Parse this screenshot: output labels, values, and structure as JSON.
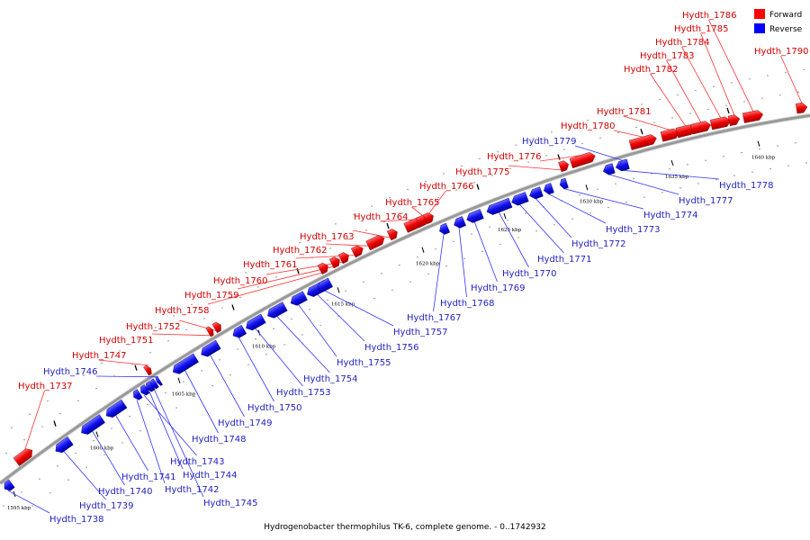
{
  "caption": "Hydrogenobacter thermophilus TK-6, complete genome. - 0..1742932",
  "legend": [
    {
      "label": "Forward",
      "color": "#ff0000"
    },
    {
      "label": "Reverse",
      "color": "#0000ff"
    }
  ],
  "colors": {
    "forward": "#ff0000",
    "reverse": "#0000ff",
    "forward_label": "#d40000",
    "reverse_label": "#1f1fbf",
    "backbone": "#999999"
  },
  "ticks": [
    "1595 kbp",
    "1600 kbp",
    "1605 kbp",
    "1610 kbp",
    "1615 kbp",
    "1620 kbp",
    "1625 kbp",
    "1630 kbp",
    "1635 kbp",
    "1640 kbp"
  ],
  "forward_genes": [
    "Hydth_1737",
    "Hydth_1747",
    "Hydth_1751",
    "Hydth_1752",
    "Hydth_1758",
    "Hydth_1759",
    "Hydth_1760",
    "Hydth_1761",
    "Hydth_1762",
    "Hydth_1763",
    "Hydth_1764",
    "Hydth_1765",
    "Hydth_1766",
    "Hydth_1775",
    "Hydth_1776",
    "Hydth_1780",
    "Hydth_1781",
    "Hydth_1782",
    "Hydth_1783",
    "Hydth_1784",
    "Hydth_1785",
    "Hydth_1786",
    "Hydth_1790"
  ],
  "reverse_genes": [
    "Hydth_1738",
    "Hydth_1739",
    "Hydth_1740",
    "Hydth_1741",
    "Hydth_1742",
    "Hydth_1743",
    "Hydth_1744",
    "Hydth_1745",
    "Hydth_1746",
    "Hydth_1748",
    "Hydth_1749",
    "Hydth_1750",
    "Hydth_1753",
    "Hydth_1754",
    "Hydth_1755",
    "Hydth_1756",
    "Hydth_1757",
    "Hydth_1767",
    "Hydth_1768",
    "Hydth_1769",
    "Hydth_1770",
    "Hydth_1771",
    "Hydth_1772",
    "Hydth_1773",
    "Hydth_1774",
    "Hydth_1777",
    "Hydth_1778",
    "Hydth_1779"
  ]
}
